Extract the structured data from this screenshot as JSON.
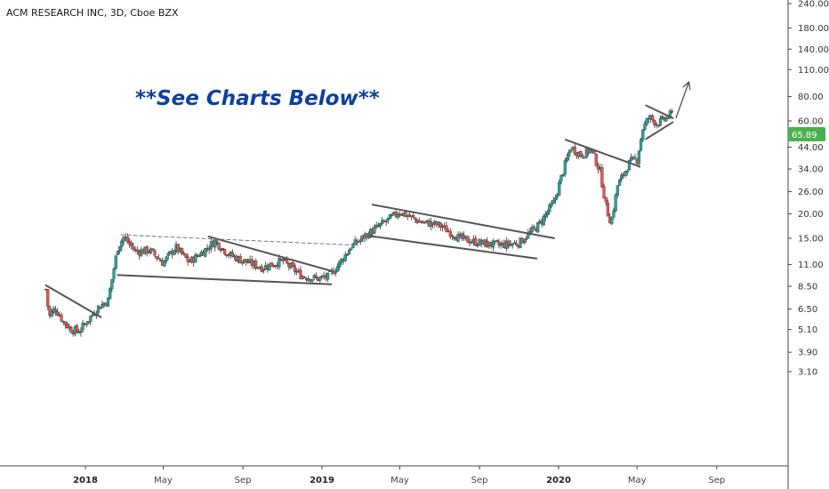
{
  "title": "ACM RESEARCH INC, 3D, Cboe BZX",
  "annotation": "**See Charts Below**",
  "price_label": "65.89",
  "colors": {
    "up": "#26a69a",
    "down": "#ef5350",
    "badge": "#4caf50",
    "annotation": "#0d3fa0",
    "line": "#555555"
  },
  "chart_data": {
    "type": "candlestick",
    "symbol": "ACMR",
    "scale": "log",
    "ylim": [
      2.6,
      260
    ],
    "y_ticks": [
      "240.00",
      "180.00",
      "140.00",
      "110.00",
      "80.00",
      "60.00",
      "44.00",
      "34.00",
      "26.00",
      "20.00",
      "15.00",
      "11.00",
      "8.50",
      "6.50",
      "5.10",
      "3.90",
      "3.10"
    ],
    "x_ticks": [
      "2018",
      "May",
      "Sep",
      "2019",
      "May",
      "Sep",
      "2020",
      "May",
      "Sep"
    ],
    "last_price": 65.89,
    "close_path": [
      {
        "date": "2017-11-01",
        "close": 8.2
      },
      {
        "date": "2017-11-06",
        "close": 5.9
      },
      {
        "date": "2017-11-15",
        "close": 6.6
      },
      {
        "date": "2017-11-28",
        "close": 5.6
      },
      {
        "date": "2017-12-10",
        "close": 5.1
      },
      {
        "date": "2017-12-22",
        "close": 5.0
      },
      {
        "date": "2018-01-05",
        "close": 5.7
      },
      {
        "date": "2018-01-20",
        "close": 6.6
      },
      {
        "date": "2018-02-05",
        "close": 7.2
      },
      {
        "date": "2018-02-20",
        "close": 13.5
      },
      {
        "date": "2018-03-01",
        "close": 15.2
      },
      {
        "date": "2018-03-20",
        "close": 12.8
      },
      {
        "date": "2018-04-10",
        "close": 13.0
      },
      {
        "date": "2018-05-01",
        "close": 11.2
      },
      {
        "date": "2018-05-20",
        "close": 13.5
      },
      {
        "date": "2018-06-10",
        "close": 11.3
      },
      {
        "date": "2018-07-01",
        "close": 12.8
      },
      {
        "date": "2018-07-20",
        "close": 14.5
      },
      {
        "date": "2018-08-10",
        "close": 12.4
      },
      {
        "date": "2018-09-01",
        "close": 11.5
      },
      {
        "date": "2018-10-01",
        "close": 10.6
      },
      {
        "date": "2018-11-01",
        "close": 11.5
      },
      {
        "date": "2018-12-01",
        "close": 9.6
      },
      {
        "date": "2018-12-25",
        "close": 9.3
      },
      {
        "date": "2019-01-10",
        "close": 9.5
      },
      {
        "date": "2019-01-25",
        "close": 10.8
      },
      {
        "date": "2019-02-15",
        "close": 13.6
      },
      {
        "date": "2019-03-10",
        "close": 15.5
      },
      {
        "date": "2019-04-01",
        "close": 17.5
      },
      {
        "date": "2019-05-01",
        "close": 20.5
      },
      {
        "date": "2019-06-01",
        "close": 18.2
      },
      {
        "date": "2019-07-01",
        "close": 17.5
      },
      {
        "date": "2019-08-01",
        "close": 15.0
      },
      {
        "date": "2019-09-01",
        "close": 14.2
      },
      {
        "date": "2019-10-01",
        "close": 13.8
      },
      {
        "date": "2019-11-01",
        "close": 14.2
      },
      {
        "date": "2019-12-01",
        "close": 17.5
      },
      {
        "date": "2019-12-25",
        "close": 23.0
      },
      {
        "date": "2020-01-10",
        "close": 35.0
      },
      {
        "date": "2020-01-20",
        "close": 44.0
      },
      {
        "date": "2020-02-05",
        "close": 40.0
      },
      {
        "date": "2020-02-20",
        "close": 43.0
      },
      {
        "date": "2020-03-05",
        "close": 33.0
      },
      {
        "date": "2020-03-15",
        "close": 21.0
      },
      {
        "date": "2020-03-22",
        "close": 18.0
      },
      {
        "date": "2020-04-01",
        "close": 28.0
      },
      {
        "date": "2020-04-20",
        "close": 37.0
      },
      {
        "date": "2020-05-01",
        "close": 38.0
      },
      {
        "date": "2020-05-10",
        "close": 55.0
      },
      {
        "date": "2020-05-20",
        "close": 63.0
      },
      {
        "date": "2020-06-01",
        "close": 58.0
      },
      {
        "date": "2020-06-15",
        "close": 62.0
      },
      {
        "date": "2020-06-25",
        "close": 65.89
      }
    ],
    "trendlines": [
      {
        "name": "wedge-1-top",
        "from": {
          "date": "2017-11-01",
          "price": 8.6
        },
        "to": {
          "date": "2018-01-25",
          "price": 5.9
        }
      },
      {
        "name": "wedge-2-top",
        "from": {
          "date": "2018-07-10",
          "price": 15.3
        },
        "to": {
          "date": "2019-01-15",
          "price": 10.2
        }
      },
      {
        "name": "wedge-2-bottom",
        "from": {
          "date": "2018-02-20",
          "price": 9.7
        },
        "to": {
          "date": "2019-01-15",
          "price": 8.7
        }
      },
      {
        "name": "resistance-dashed",
        "from": {
          "date": "2018-02-25",
          "price": 15.6
        },
        "to": {
          "date": "2019-02-25",
          "price": 13.8
        }
      },
      {
        "name": "channel-top",
        "from": {
          "date": "2019-03-20",
          "price": 22.3
        },
        "to": {
          "date": "2019-12-25",
          "price": 15.0
        }
      },
      {
        "name": "channel-bottom",
        "from": {
          "date": "2019-03-15",
          "price": 15.4
        },
        "to": {
          "date": "2019-11-28",
          "price": 11.8
        }
      },
      {
        "name": "flag-top",
        "from": {
          "date": "2020-01-12",
          "price": 48.0
        },
        "to": {
          "date": "2020-05-05",
          "price": 35.0
        }
      },
      {
        "name": "triangle-top",
        "from": {
          "date": "2020-05-15",
          "price": 72.0
        },
        "to": {
          "date": "2020-06-25",
          "price": 62.0
        }
      },
      {
        "name": "triangle-bottom",
        "from": {
          "date": "2020-05-15",
          "price": 48.5
        },
        "to": {
          "date": "2020-06-25",
          "price": 59.0
        }
      }
    ],
    "projection_arrow": {
      "from": {
        "date": "2020-06-30",
        "price": 62.0
      },
      "to": {
        "date": "2020-07-20",
        "price": 95.0
      }
    }
  }
}
